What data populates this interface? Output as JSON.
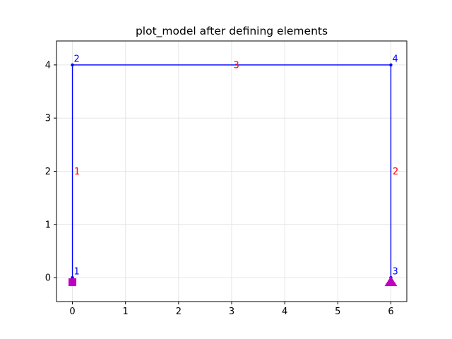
{
  "title": "plot_model after defining elements",
  "colors": {
    "element_line": "#0000ff",
    "node_label": "#0000ff",
    "element_label": "#ff0000",
    "support": "#bf00bf",
    "grid": "#e6e6e6",
    "axes": "#000000"
  },
  "chart_data": {
    "type": "structural-model",
    "xlim": [
      -0.3,
      6.3
    ],
    "ylim": [
      -0.45,
      4.45
    ],
    "xticks": [
      0,
      1,
      2,
      3,
      4,
      5,
      6
    ],
    "yticks": [
      0,
      1,
      2,
      3,
      4
    ],
    "grid": true,
    "nodes": [
      {
        "id": "1",
        "x": 0,
        "y": 0
      },
      {
        "id": "2",
        "x": 0,
        "y": 4
      },
      {
        "id": "3",
        "x": 6,
        "y": 0
      },
      {
        "id": "4",
        "x": 6,
        "y": 4
      }
    ],
    "elements": [
      {
        "id": "1",
        "from": "1",
        "to": "2"
      },
      {
        "id": "2",
        "from": "3",
        "to": "4"
      },
      {
        "id": "3",
        "from": "2",
        "to": "4"
      }
    ],
    "supports": [
      {
        "node": "1",
        "type": "fixed",
        "marker": "square"
      },
      {
        "node": "3",
        "type": "pinned",
        "marker": "triangle"
      }
    ]
  }
}
